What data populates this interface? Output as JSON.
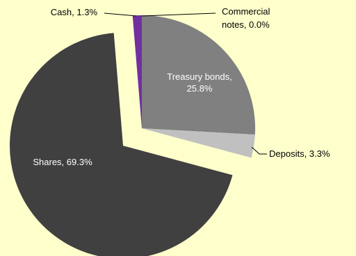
{
  "chart_data": {
    "type": "pie",
    "title": "",
    "legend": "none",
    "slices": [
      {
        "label": "Treasury bonds",
        "value": 25.8,
        "display": "25.8%",
        "color": "#808080"
      },
      {
        "label": "Deposits",
        "value": 3.3,
        "display": "3.3%",
        "color": "#C0C0C0"
      },
      {
        "label": "Shares",
        "value": 69.3,
        "display": "69.3%",
        "color": "#404040"
      },
      {
        "label": "Cash",
        "value": 1.3,
        "display": "1.3%",
        "color": "#7030A0"
      },
      {
        "label": "Commercial notes",
        "value": 0.0,
        "display": "0.0%",
        "color": "#000000"
      }
    ],
    "labels": {
      "treasury_line1": "Treasury bonds,",
      "treasury_line2": "25.8%",
      "deposits": "Deposits, 3.3%",
      "shares": "Shares, 69.3%",
      "cash": "Cash, 1.3%",
      "commercial_line1": "Commercial",
      "commercial_line2": "notes, 0.0%"
    }
  }
}
